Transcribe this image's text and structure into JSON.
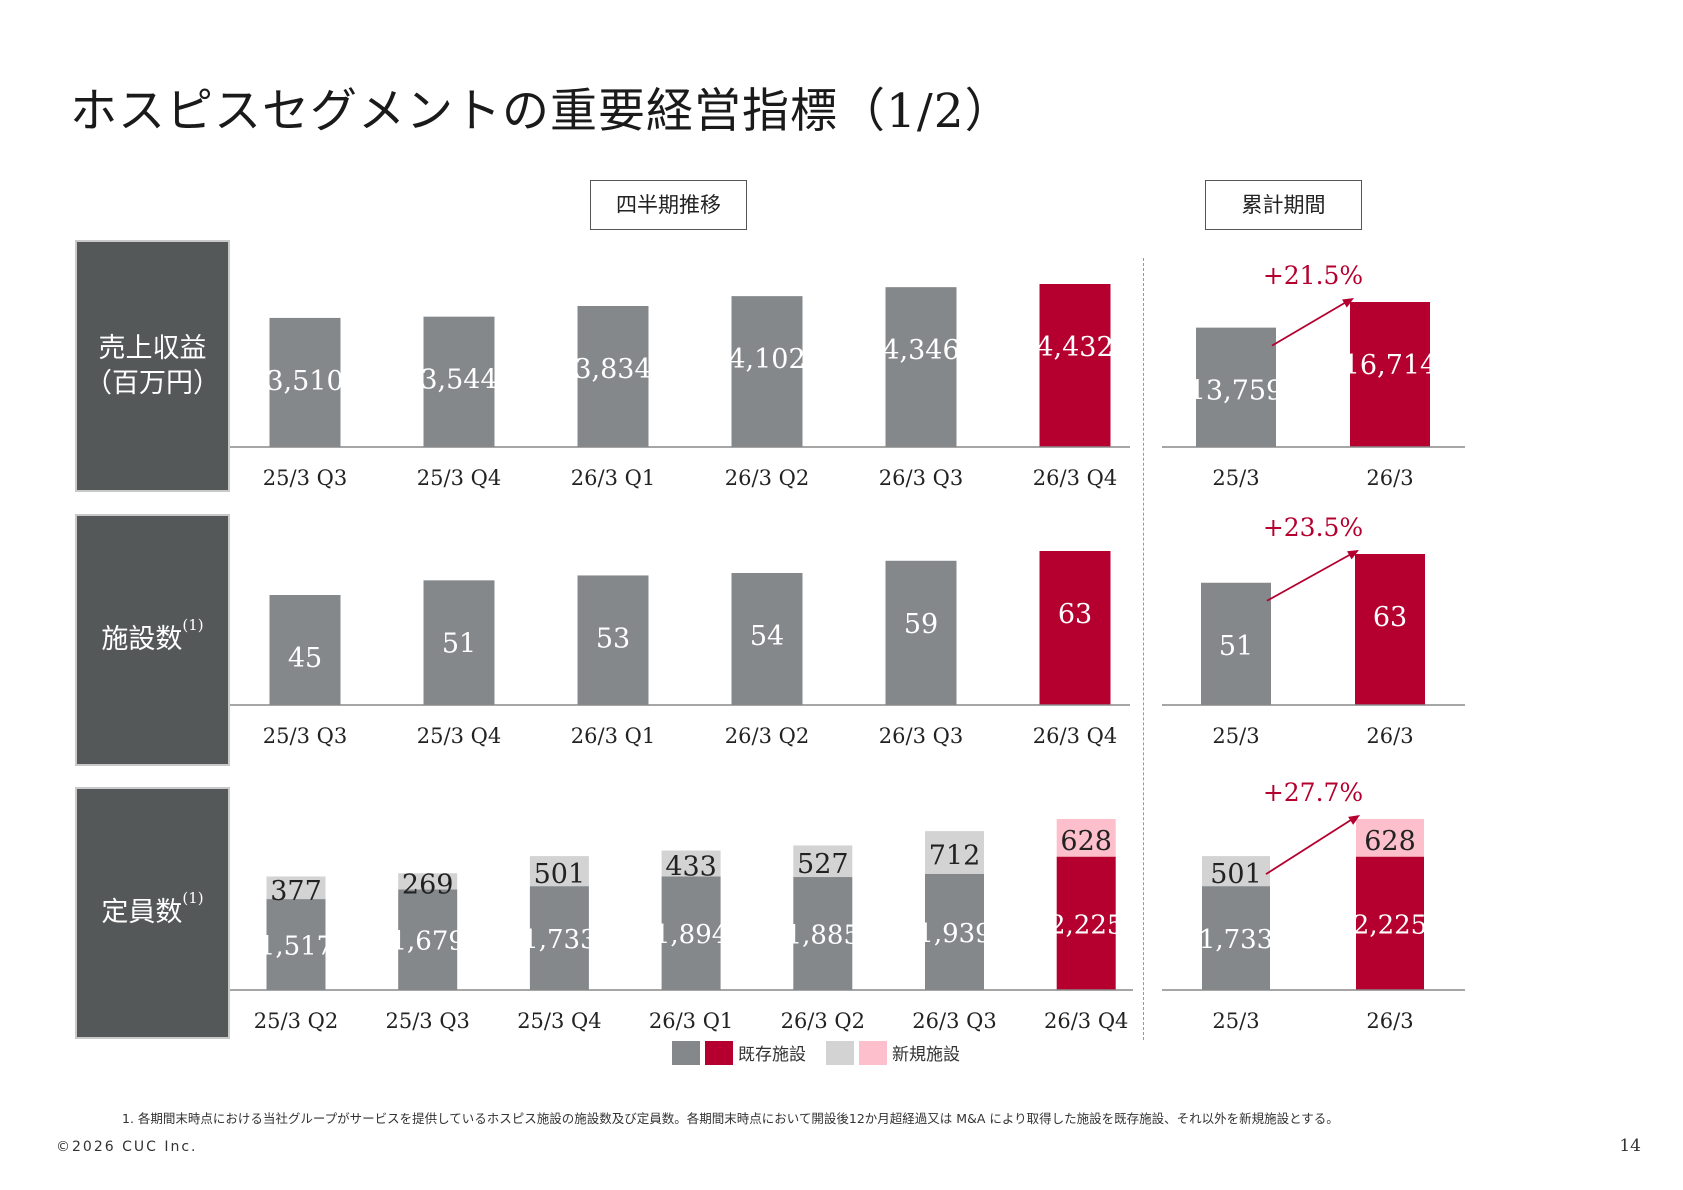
{
  "title": "ホスピスセグメントの重要経営指標（1/2）",
  "header_quarterly": "四半期推移",
  "header_cumulative": "累計期間",
  "row_labels": {
    "revenue": {
      "line1": "売上収益",
      "line2": "（百万円）"
    },
    "facilities": {
      "label": "施設数",
      "sup": "(1)"
    },
    "capacity": {
      "label": "定員数",
      "sup": "(1)"
    }
  },
  "colors": {
    "gray": "#85888b",
    "red": "#b5002f",
    "light_gray": "#d3d3d3",
    "pink": "#fdbfcc",
    "label_bg": "#555859"
  },
  "legend": {
    "existing": "既存施設",
    "new": "新規施設"
  },
  "footnote": "1. 各期間末時点における当社グループがサービスを提供しているホスピス施設の施設数及び定員数。各期間末時点において開設後12か月超経過又は M&A により取得した施設を既存施設、それ以外を新規施設とする。",
  "copyright": "©2026 CUC Inc.",
  "page_number": "14",
  "chart_data": [
    {
      "id": "revenue_quarterly",
      "type": "bar",
      "categories": [
        "25/3 Q3",
        "25/3 Q4",
        "26/3 Q1",
        "26/3 Q2",
        "26/3 Q3",
        "26/3 Q4"
      ],
      "values": [
        3510,
        3544,
        3834,
        4102,
        4346,
        4432
      ],
      "labels": [
        "3,510",
        "3,544",
        "3,834",
        "4,102",
        "4,346",
        "4,432"
      ],
      "highlight_last": true
    },
    {
      "id": "revenue_cumulative",
      "type": "bar",
      "categories": [
        "25/3",
        "26/3"
      ],
      "values": [
        13759,
        16714
      ],
      "labels": [
        "13,759",
        "16,714"
      ],
      "growth": "+21.5%",
      "highlight_last": true
    },
    {
      "id": "facilities_quarterly",
      "type": "bar",
      "categories": [
        "25/3 Q3",
        "25/3 Q4",
        "26/3 Q1",
        "26/3 Q2",
        "26/3 Q3",
        "26/3 Q4"
      ],
      "values": [
        45,
        51,
        53,
        54,
        59,
        63
      ],
      "labels": [
        "45",
        "51",
        "53",
        "54",
        "59",
        "63"
      ],
      "highlight_last": true
    },
    {
      "id": "facilities_cumulative",
      "type": "bar",
      "categories": [
        "25/3",
        "26/3"
      ],
      "values": [
        51,
        63
      ],
      "labels": [
        "51",
        "63"
      ],
      "growth": "+23.5%",
      "highlight_last": true
    },
    {
      "id": "capacity_quarterly",
      "type": "bar",
      "stacked": true,
      "categories": [
        "25/3 Q2",
        "25/3 Q3",
        "25/3 Q4",
        "26/3 Q1",
        "26/3 Q2",
        "26/3 Q3",
        "26/3 Q4"
      ],
      "series": [
        {
          "name": "既存施設",
          "values": [
            1517,
            1679,
            1733,
            1894,
            1885,
            1939,
            2225
          ],
          "labels": [
            "1,517",
            "1,679",
            "1,733",
            "1,894",
            "1,885",
            "1,939",
            "2,225"
          ]
        },
        {
          "name": "新規施設",
          "values": [
            377,
            269,
            501,
            433,
            527,
            712,
            628
          ],
          "labels": [
            "377",
            "269",
            "501",
            "433",
            "527",
            "712",
            "628"
          ]
        }
      ],
      "highlight_last": true
    },
    {
      "id": "capacity_cumulative",
      "type": "bar",
      "stacked": true,
      "categories": [
        "25/3",
        "26/3"
      ],
      "series": [
        {
          "name": "既存施設",
          "values": [
            1733,
            2225
          ],
          "labels": [
            "1,733",
            "2,225"
          ]
        },
        {
          "name": "新規施設",
          "values": [
            501,
            628
          ],
          "labels": [
            "501",
            "628"
          ]
        }
      ],
      "growth": "+27.7%",
      "highlight_last": true
    }
  ]
}
